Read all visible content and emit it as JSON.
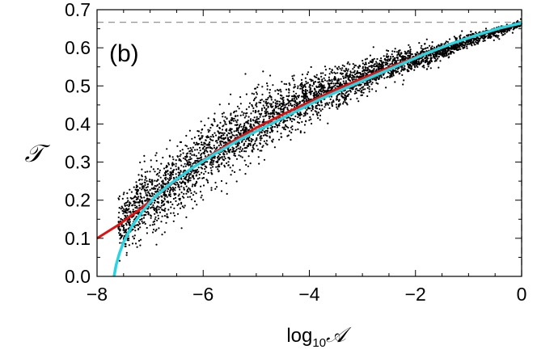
{
  "chart_data": {
    "type": "scatter",
    "panel_label": "(b)",
    "xlabel": {
      "prefix": "log",
      "sub": "10",
      "var": "𝒜"
    },
    "ylabel": "𝒯",
    "xlim": [
      -8,
      0
    ],
    "ylim": [
      0,
      0.7
    ],
    "xticks": [
      -8,
      -6,
      -4,
      -2,
      0
    ],
    "xtick_labels": [
      "−8",
      "−6",
      "−4",
      "−2",
      "0"
    ],
    "yticks": [
      0.0,
      0.1,
      0.2,
      0.3,
      0.4,
      0.5,
      0.6,
      0.7
    ],
    "ytick_labels": [
      "0.0",
      "0.1",
      "0.2",
      "0.3",
      "0.4",
      "0.5",
      "0.6",
      "0.7"
    ],
    "grid": false,
    "reference_lines": [
      {
        "orientation": "horizontal",
        "value": 0.667,
        "style": "dashed",
        "color": "#999999"
      },
      {
        "orientation": "vertical",
        "value": 0,
        "style": "dashed",
        "color": "#999999"
      }
    ],
    "series": [
      {
        "kind": "scatter",
        "color": "#000000",
        "count": 4000,
        "x_range": [
          -7.6,
          0
        ],
        "center_curve": [
          [
            -7.6,
            0.12
          ],
          [
            -7.2,
            0.19
          ],
          [
            -6.8,
            0.22
          ],
          [
            -6.4,
            0.26
          ],
          [
            -6.0,
            0.31
          ],
          [
            -5.5,
            0.36
          ],
          [
            -5.0,
            0.4
          ],
          [
            -4.5,
            0.43
          ],
          [
            -4.0,
            0.47
          ],
          [
            -3.5,
            0.49
          ],
          [
            -3.0,
            0.52
          ],
          [
            -2.5,
            0.55
          ],
          [
            -2.0,
            0.57
          ],
          [
            -1.5,
            0.59
          ],
          [
            -1.0,
            0.62
          ],
          [
            -0.5,
            0.64
          ],
          [
            0.0,
            0.665
          ]
        ],
        "spread": [
          [
            -7.6,
            0.08
          ],
          [
            -6.0,
            0.09
          ],
          [
            -4.0,
            0.06
          ],
          [
            -2.0,
            0.03
          ],
          [
            0.0,
            0.008
          ]
        ]
      },
      {
        "kind": "line",
        "color": "#e01010",
        "points": [
          [
            -8.0,
            0.1
          ],
          [
            -7.6,
            0.135
          ],
          [
            -7.2,
            0.175
          ],
          [
            -6.8,
            0.22
          ],
          [
            -6.4,
            0.265
          ],
          [
            -6.0,
            0.305
          ],
          [
            -5.5,
            0.35
          ],
          [
            -5.0,
            0.39
          ],
          [
            -4.5,
            0.425
          ],
          [
            -4.0,
            0.458
          ],
          [
            -3.5,
            0.49
          ],
          [
            -3.0,
            0.52
          ],
          [
            -2.5,
            0.548
          ],
          [
            -2.0,
            0.575
          ],
          [
            -1.5,
            0.602
          ],
          [
            -1.0,
            0.627
          ],
          [
            -0.5,
            0.648
          ],
          [
            0.0,
            0.665
          ]
        ]
      },
      {
        "kind": "line",
        "color": "#2ad4e0",
        "points": [
          [
            -7.68,
            0.0
          ],
          [
            -7.64,
            0.03
          ],
          [
            -7.58,
            0.06
          ],
          [
            -7.5,
            0.09
          ],
          [
            -7.35,
            0.13
          ],
          [
            -7.15,
            0.17
          ],
          [
            -6.9,
            0.21
          ],
          [
            -6.6,
            0.245
          ],
          [
            -6.2,
            0.285
          ],
          [
            -5.8,
            0.32
          ],
          [
            -5.3,
            0.36
          ],
          [
            -4.8,
            0.395
          ],
          [
            -4.3,
            0.43
          ],
          [
            -3.8,
            0.465
          ],
          [
            -3.3,
            0.495
          ],
          [
            -2.8,
            0.525
          ],
          [
            -2.3,
            0.555
          ],
          [
            -1.8,
            0.585
          ],
          [
            -1.3,
            0.612
          ],
          [
            -0.8,
            0.635
          ],
          [
            -0.4,
            0.652
          ],
          [
            0.0,
            0.665
          ]
        ]
      }
    ]
  }
}
